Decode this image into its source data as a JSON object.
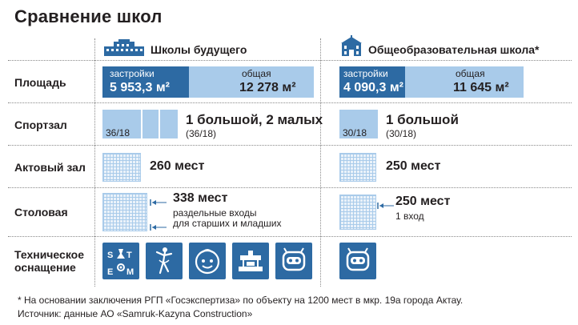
{
  "title": "Сравнение школ",
  "columns": {
    "future": "Школы будущего",
    "general": "Общеобразовательная школа*"
  },
  "rows": {
    "area": "Площадь",
    "gym": "Спортзал",
    "hall": "Актовый зал",
    "canteen": "Столовая",
    "tech_line1": "Техническое",
    "tech_line2": "оснащение"
  },
  "area": {
    "built_label": "застройки",
    "total_label": "общая",
    "future_built": "5 953,3 м²",
    "future_total": "12 278 м²",
    "general_built": "4 090,3 м²",
    "general_total": "11 645 м²"
  },
  "gym": {
    "future_size": "36/18",
    "future_text": "1 большой, 2 малых",
    "future_sub": "(36/18)",
    "general_size": "30/18",
    "general_text": "1 большой",
    "general_sub": "(30/18)"
  },
  "hall": {
    "future": "260 мест",
    "general": "250 мест"
  },
  "canteen": {
    "future": "338 мест",
    "future_sub1": "раздельные входы",
    "future_sub2": "для старших и младших",
    "general": "250 мест",
    "general_sub": "1 вход"
  },
  "tech_tile_letters": [
    "S",
    "T",
    "E",
    "M"
  ],
  "icons": {
    "future": [
      "stem-icon",
      "dancer-icon",
      "child-face-icon",
      "3d-printer-icon",
      "robot-icon"
    ],
    "general": [
      "robot-icon"
    ]
  },
  "colors": {
    "dark_blue": "#2d6aa3",
    "light_blue": "#a9cbea",
    "grid_bg": "#eaf2fa"
  },
  "footnote": {
    "line1": "* На основании заключения РГП «Госэкспертиза» по объекту на 1200 мест в мкр. 19а города Актау.",
    "line2": "Источник: данные АО «Samruk-Kazyna Construction»"
  }
}
